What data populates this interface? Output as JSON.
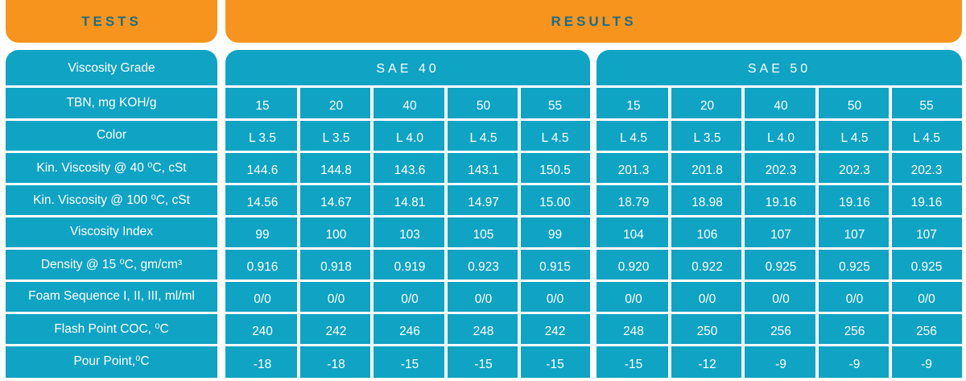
{
  "header": {
    "tests_label": "TESTS",
    "results_label": "RESULTS"
  },
  "groups": [
    "SAE 40",
    "SAE 50"
  ],
  "rows": [
    {
      "label": "Viscosity Grade",
      "values": []
    },
    {
      "label": "TBN, mg KOH/g",
      "values": [
        "15",
        "20",
        "40",
        "50",
        "55",
        "15",
        "20",
        "40",
        "50",
        "55"
      ]
    },
    {
      "label": "Color",
      "values": [
        "L 3.5",
        "L 3.5",
        "L 4.0",
        "L 4.5",
        "L 4.5",
        "L 4.5",
        "L 3.5",
        "L 4.0",
        "L 4.5",
        "L 4.5"
      ]
    },
    {
      "label": "Kin. Viscosity @ 40 ⁰C, cSt",
      "values": [
        "144.6",
        "144.8",
        "143.6",
        "143.1",
        "150.5",
        "201.3",
        "201.8",
        "202.3",
        "202.3",
        "202.3"
      ]
    },
    {
      "label": "Kin. Viscosity @ 100 ⁰C, cSt",
      "values": [
        "14.56",
        "14.67",
        "14.81",
        "14.97",
        "15.00",
        "18.79",
        "18.98",
        "19.16",
        "19.16",
        "19.16"
      ]
    },
    {
      "label": "Viscosity Index",
      "values": [
        "99",
        "100",
        "103",
        "105",
        "99",
        "104",
        "106",
        "107",
        "107",
        "107"
      ]
    },
    {
      "label": "Density @ 15 ⁰C, gm/cm³",
      "values": [
        "0.916",
        "0.918",
        "0.919",
        "0.923",
        "0.915",
        "0.920",
        "0.922",
        "0.925",
        "0.925",
        "0.925"
      ]
    },
    {
      "label": "Foam Sequence I, II, III, ml/ml",
      "values": [
        "0/0",
        "0/0",
        "0/0",
        "0/0",
        "0/0",
        "0/0",
        "0/0",
        "0/0",
        "0/0",
        "0/0"
      ]
    },
    {
      "label": "Flash Point COC, ⁰C",
      "values": [
        "240",
        "242",
        "246",
        "248",
        "242",
        "248",
        "250",
        "256",
        "256",
        "256"
      ]
    },
    {
      "label": "Pour Point,⁰C",
      "values": [
        "-18",
        "-18",
        "-15",
        "-15",
        "-15",
        "-15",
        "-12",
        "-9",
        "-9",
        "-9"
      ]
    }
  ],
  "colors": {
    "header_orange": "#f7941d",
    "header_text": "#1b6e8c",
    "cell_blue": "#0fa3c4"
  }
}
